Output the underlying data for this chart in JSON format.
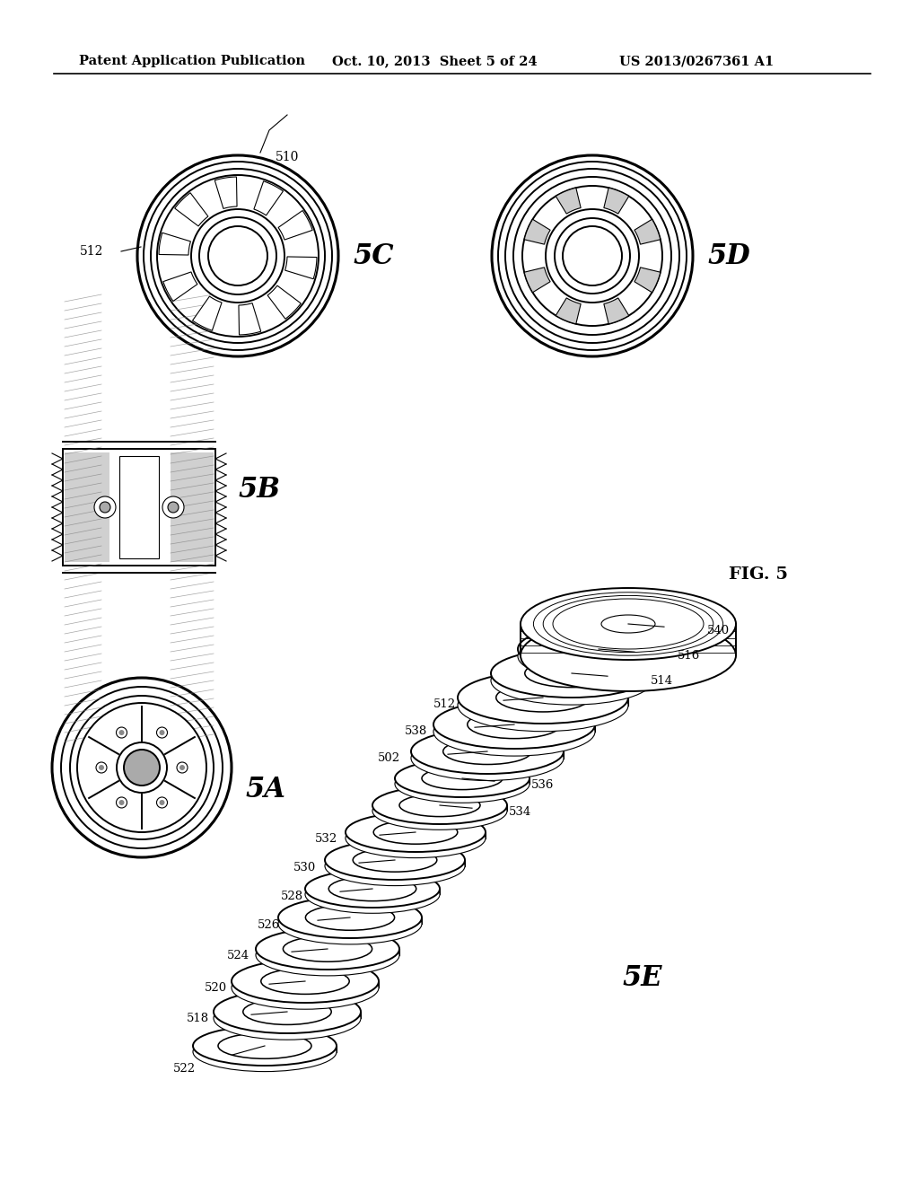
{
  "bg_color": "#ffffff",
  "header_text_left": "Patent Application Publication",
  "header_text_mid": "Oct. 10, 2013  Sheet 5 of 24",
  "header_text_right": "US 2013/0267361 A1",
  "fig_label": "FIG. 5",
  "lw_thick": 2.2,
  "lw_med": 1.4,
  "lw_thin": 0.8,
  "black": "#000000",
  "gray_light": "#e8e8e8",
  "gray_med": "#cccccc",
  "gray_dark": "#aaaaaa",
  "hatch_gray": "#d0d0d0"
}
